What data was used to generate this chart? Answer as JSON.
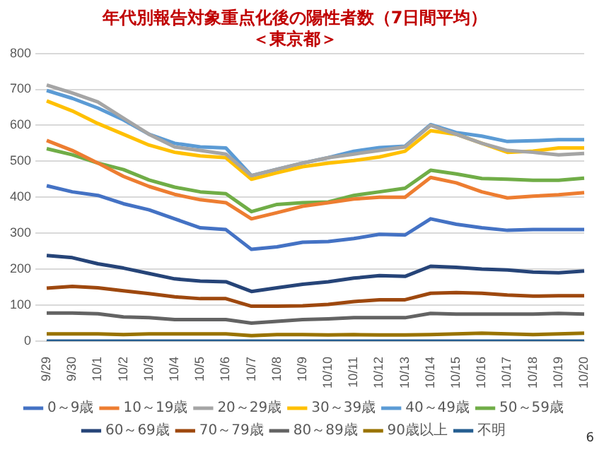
{
  "chart_data": {
    "type": "line",
    "title": "年代別報告対象重点化後の陽性者数（7日間平均）",
    "subtitle": "＜東京都＞",
    "categories": [
      "9/29",
      "9/30",
      "10/1",
      "10/2",
      "10/3",
      "10/4",
      "10/5",
      "10/6",
      "10/7",
      "10/8",
      "10/9",
      "10/10",
      "10/11",
      "10/12",
      "10/13",
      "10/14",
      "10/15",
      "10/16",
      "10/17",
      "10/18",
      "10/19",
      "10/20"
    ],
    "series": [
      {
        "name": "0～9歳",
        "color": "#4472c4",
        "values": [
          432,
          415,
          405,
          382,
          365,
          340,
          315,
          310,
          255,
          262,
          275,
          277,
          285,
          297,
          295,
          340,
          325,
          315,
          308,
          310,
          310,
          310
        ]
      },
      {
        "name": "10～19歳",
        "color": "#ed7d31",
        "values": [
          558,
          530,
          495,
          458,
          430,
          408,
          393,
          385,
          340,
          357,
          375,
          385,
          395,
          400,
          400,
          455,
          440,
          415,
          398,
          403,
          407,
          413
        ]
      },
      {
        "name": "20～29歳",
        "color": "#a5a5a5",
        "values": [
          712,
          690,
          665,
          620,
          575,
          540,
          530,
          520,
          460,
          478,
          495,
          510,
          520,
          530,
          540,
          600,
          575,
          550,
          530,
          525,
          518,
          522
        ]
      },
      {
        "name": "30～39歳",
        "color": "#ffc000",
        "values": [
          668,
          640,
          605,
          575,
          545,
          525,
          515,
          510,
          450,
          468,
          485,
          495,
          502,
          512,
          528,
          585,
          575,
          550,
          525,
          528,
          537,
          537
        ]
      },
      {
        "name": "40～49歳",
        "color": "#5b9bd5",
        "values": [
          697,
          675,
          648,
          615,
          575,
          550,
          540,
          537,
          460,
          478,
          495,
          510,
          528,
          538,
          542,
          602,
          580,
          570,
          555,
          557,
          560,
          560
        ]
      },
      {
        "name": "50～59歳",
        "color": "#70ad47",
        "values": [
          535,
          518,
          495,
          477,
          448,
          428,
          415,
          410,
          360,
          380,
          385,
          387,
          405,
          415,
          425,
          475,
          465,
          452,
          450,
          447,
          447,
          453
        ]
      },
      {
        "name": "60～69歳",
        "color": "#264478",
        "values": [
          238,
          232,
          215,
          203,
          188,
          173,
          167,
          165,
          138,
          148,
          158,
          165,
          175,
          182,
          180,
          208,
          205,
          200,
          198,
          192,
          190,
          195
        ]
      },
      {
        "name": "70～79歳",
        "color": "#9e480e",
        "values": [
          147,
          152,
          148,
          140,
          132,
          123,
          118,
          118,
          97,
          97,
          98,
          102,
          110,
          115,
          115,
          133,
          135,
          133,
          128,
          125,
          126,
          126
        ]
      },
      {
        "name": "80～89歳",
        "color": "#636363",
        "values": [
          78,
          78,
          76,
          67,
          65,
          60,
          60,
          60,
          50,
          55,
          60,
          62,
          65,
          65,
          65,
          77,
          75,
          75,
          75,
          75,
          77,
          75
        ]
      },
      {
        "name": "90歳以上",
        "color": "#997300",
        "values": [
          20,
          20,
          20,
          18,
          20,
          20,
          20,
          20,
          15,
          18,
          18,
          17,
          18,
          17,
          17,
          18,
          20,
          22,
          20,
          18,
          20,
          22
        ]
      },
      {
        "name": "不明",
        "color": "#255e91",
        "values": [
          0,
          0,
          0,
          0,
          0,
          0,
          0,
          0,
          0,
          0,
          0,
          0,
          0,
          0,
          0,
          0,
          0,
          0,
          0,
          0,
          0,
          0
        ]
      }
    ],
    "ylim": [
      0,
      800
    ],
    "yticks": [
      0,
      100,
      200,
      300,
      400,
      500,
      600,
      700,
      800
    ],
    "grid": "y",
    "legend": "bottom",
    "marker": "none",
    "line_style": "solid",
    "annotations": [
      "6"
    ]
  }
}
